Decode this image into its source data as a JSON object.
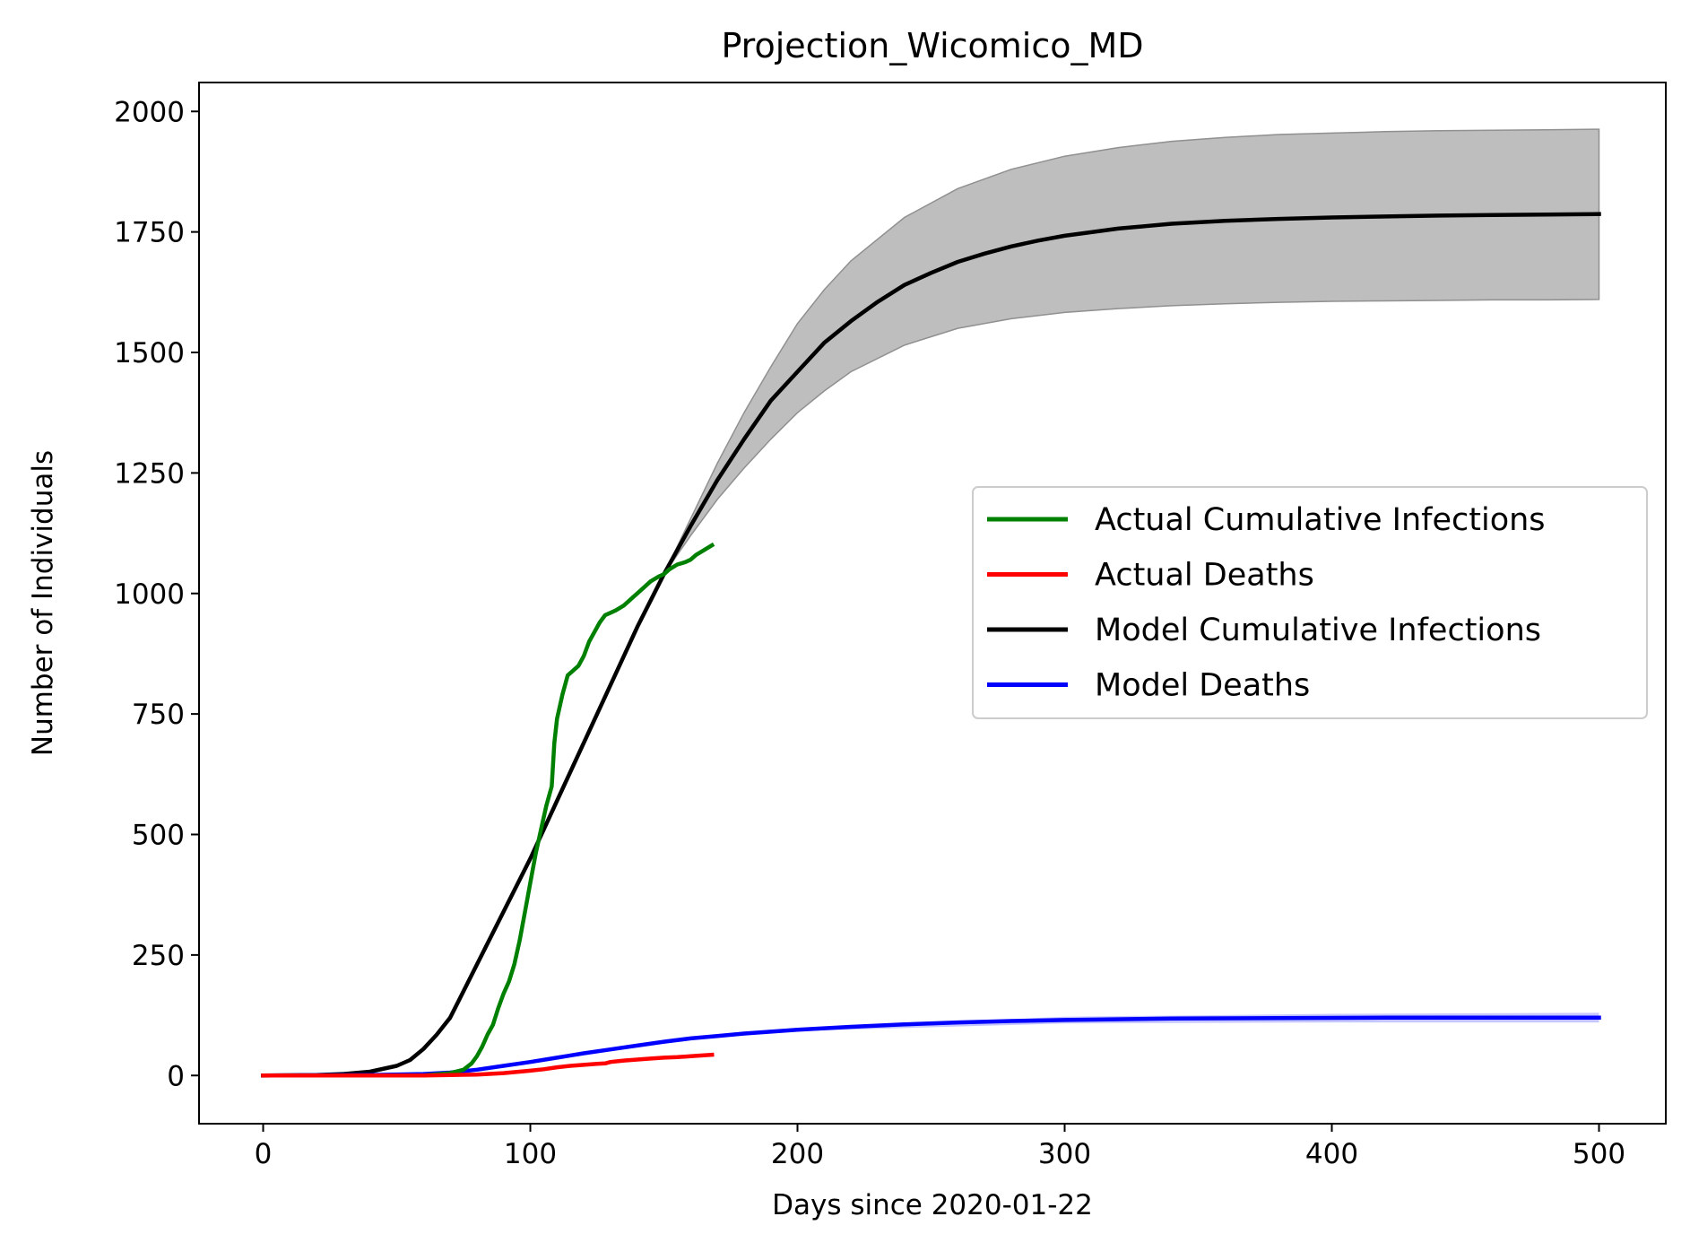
{
  "chart_data": {
    "type": "line",
    "title": "Projection_Wicomico_MD",
    "xlabel": "Days since 2020-01-22",
    "ylabel": "Number of Individuals",
    "xlim": [
      -24,
      525
    ],
    "ylim": [
      -100,
      2060
    ],
    "xticks": [
      0,
      100,
      200,
      300,
      400,
      500
    ],
    "yticks": [
      0,
      250,
      500,
      750,
      1000,
      1250,
      1500,
      1750,
      2000
    ],
    "grid": false,
    "legend_position": "center-right",
    "series": [
      {
        "name": "Actual Cumulative Infections",
        "color": "#008000",
        "x": [
          0,
          20,
          40,
          60,
          70,
          75,
          78,
          80,
          82,
          84,
          86,
          88,
          90,
          92,
          94,
          96,
          98,
          100,
          102,
          104,
          106,
          108,
          109,
          110,
          112,
          114,
          116,
          118,
          120,
          122,
          124,
          126,
          128,
          130,
          132,
          135,
          138,
          140,
          142,
          145,
          148,
          150,
          152,
          155,
          158,
          160,
          162,
          165,
          168
        ],
        "y": [
          0,
          0,
          0,
          0,
          5,
          12,
          25,
          40,
          60,
          85,
          105,
          140,
          170,
          195,
          230,
          280,
          340,
          400,
          460,
          510,
          560,
          600,
          690,
          740,
          790,
          830,
          840,
          850,
          870,
          900,
          920,
          940,
          955,
          960,
          965,
          975,
          990,
          1000,
          1010,
          1025,
          1035,
          1040,
          1050,
          1060,
          1065,
          1070,
          1080,
          1090,
          1100
        ]
      },
      {
        "name": "Actual Deaths",
        "color": "#ff0000",
        "x": [
          0,
          60,
          70,
          80,
          90,
          100,
          105,
          110,
          115,
          120,
          125,
          128,
          130,
          135,
          140,
          145,
          150,
          155,
          160,
          165,
          168
        ],
        "y": [
          0,
          0,
          1,
          2,
          5,
          10,
          13,
          17,
          20,
          22,
          24,
          25,
          28,
          31,
          33,
          35,
          37,
          38,
          40,
          42,
          43
        ]
      },
      {
        "name": "Model Cumulative Infections",
        "color": "#000000",
        "x": [
          0,
          20,
          30,
          40,
          50,
          55,
          60,
          65,
          70,
          75,
          80,
          90,
          100,
          110,
          120,
          130,
          140,
          150,
          160,
          170,
          180,
          190,
          200,
          210,
          220,
          230,
          240,
          250,
          260,
          270,
          280,
          290,
          300,
          320,
          340,
          360,
          380,
          400,
          420,
          440,
          460,
          480,
          500
        ],
        "y": [
          0,
          1,
          3,
          8,
          20,
          32,
          55,
          85,
          120,
          175,
          230,
          340,
          450,
          570,
          690,
          810,
          930,
          1040,
          1140,
          1235,
          1320,
          1400,
          1460,
          1520,
          1565,
          1605,
          1640,
          1665,
          1688,
          1705,
          1720,
          1732,
          1742,
          1757,
          1767,
          1773,
          1777,
          1780,
          1782,
          1784,
          1785,
          1786,
          1787
        ]
      },
      {
        "name": "Model Deaths",
        "color": "#0000ff",
        "x": [
          0,
          40,
          60,
          70,
          80,
          90,
          100,
          110,
          120,
          130,
          140,
          150,
          160,
          170,
          180,
          200,
          220,
          240,
          260,
          280,
          300,
          340,
          380,
          420,
          460,
          500
        ],
        "y": [
          0,
          1,
          3,
          6,
          12,
          20,
          28,
          37,
          46,
          54,
          62,
          70,
          77,
          82,
          87,
          95,
          101,
          106,
          110,
          113,
          115,
          118,
          119,
          120,
          120,
          120
        ]
      }
    ],
    "bands": [
      {
        "of": "Model Cumulative Infections",
        "color": "#bebebe",
        "x": [
          150,
          160,
          170,
          180,
          190,
          200,
          210,
          220,
          240,
          260,
          280,
          300,
          320,
          340,
          360,
          380,
          400,
          420,
          440,
          460,
          480,
          500
        ],
        "lower": [
          1040,
          1120,
          1195,
          1260,
          1320,
          1375,
          1420,
          1460,
          1515,
          1550,
          1570,
          1583,
          1591,
          1597,
          1601,
          1604,
          1606,
          1607,
          1608,
          1609,
          1609,
          1610
        ],
        "upper": [
          1040,
          1155,
          1270,
          1375,
          1470,
          1560,
          1630,
          1690,
          1780,
          1840,
          1880,
          1907,
          1925,
          1938,
          1946,
          1952,
          1955,
          1958,
          1960,
          1961,
          1962,
          1963
        ]
      },
      {
        "of": "Model Deaths",
        "color": "#8080ff",
        "x": [
          200,
          300,
          400,
          500
        ],
        "lower": [
          92,
          108,
          110,
          110
        ],
        "upper": [
          98,
          122,
          128,
          130
        ]
      }
    ]
  }
}
